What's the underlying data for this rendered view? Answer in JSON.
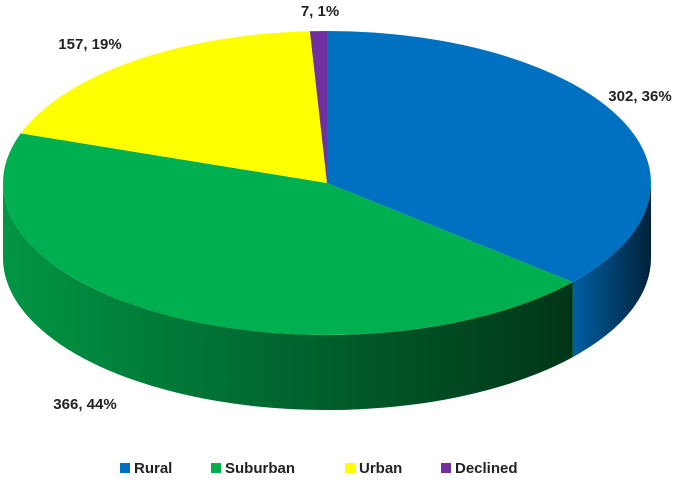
{
  "chart_data": {
    "type": "pie3d",
    "categories": [
      "Rural",
      "Suburban",
      "Urban",
      "Declined"
    ],
    "values": [
      302,
      366,
      157,
      7
    ],
    "value_labels": [
      "302, 36%",
      "366, 44%",
      "157, 19%",
      "7, 1%"
    ],
    "colors": [
      "#0070c0",
      "#00b050",
      "#ffff00",
      "#7030a0"
    ],
    "legend": "bottom"
  }
}
